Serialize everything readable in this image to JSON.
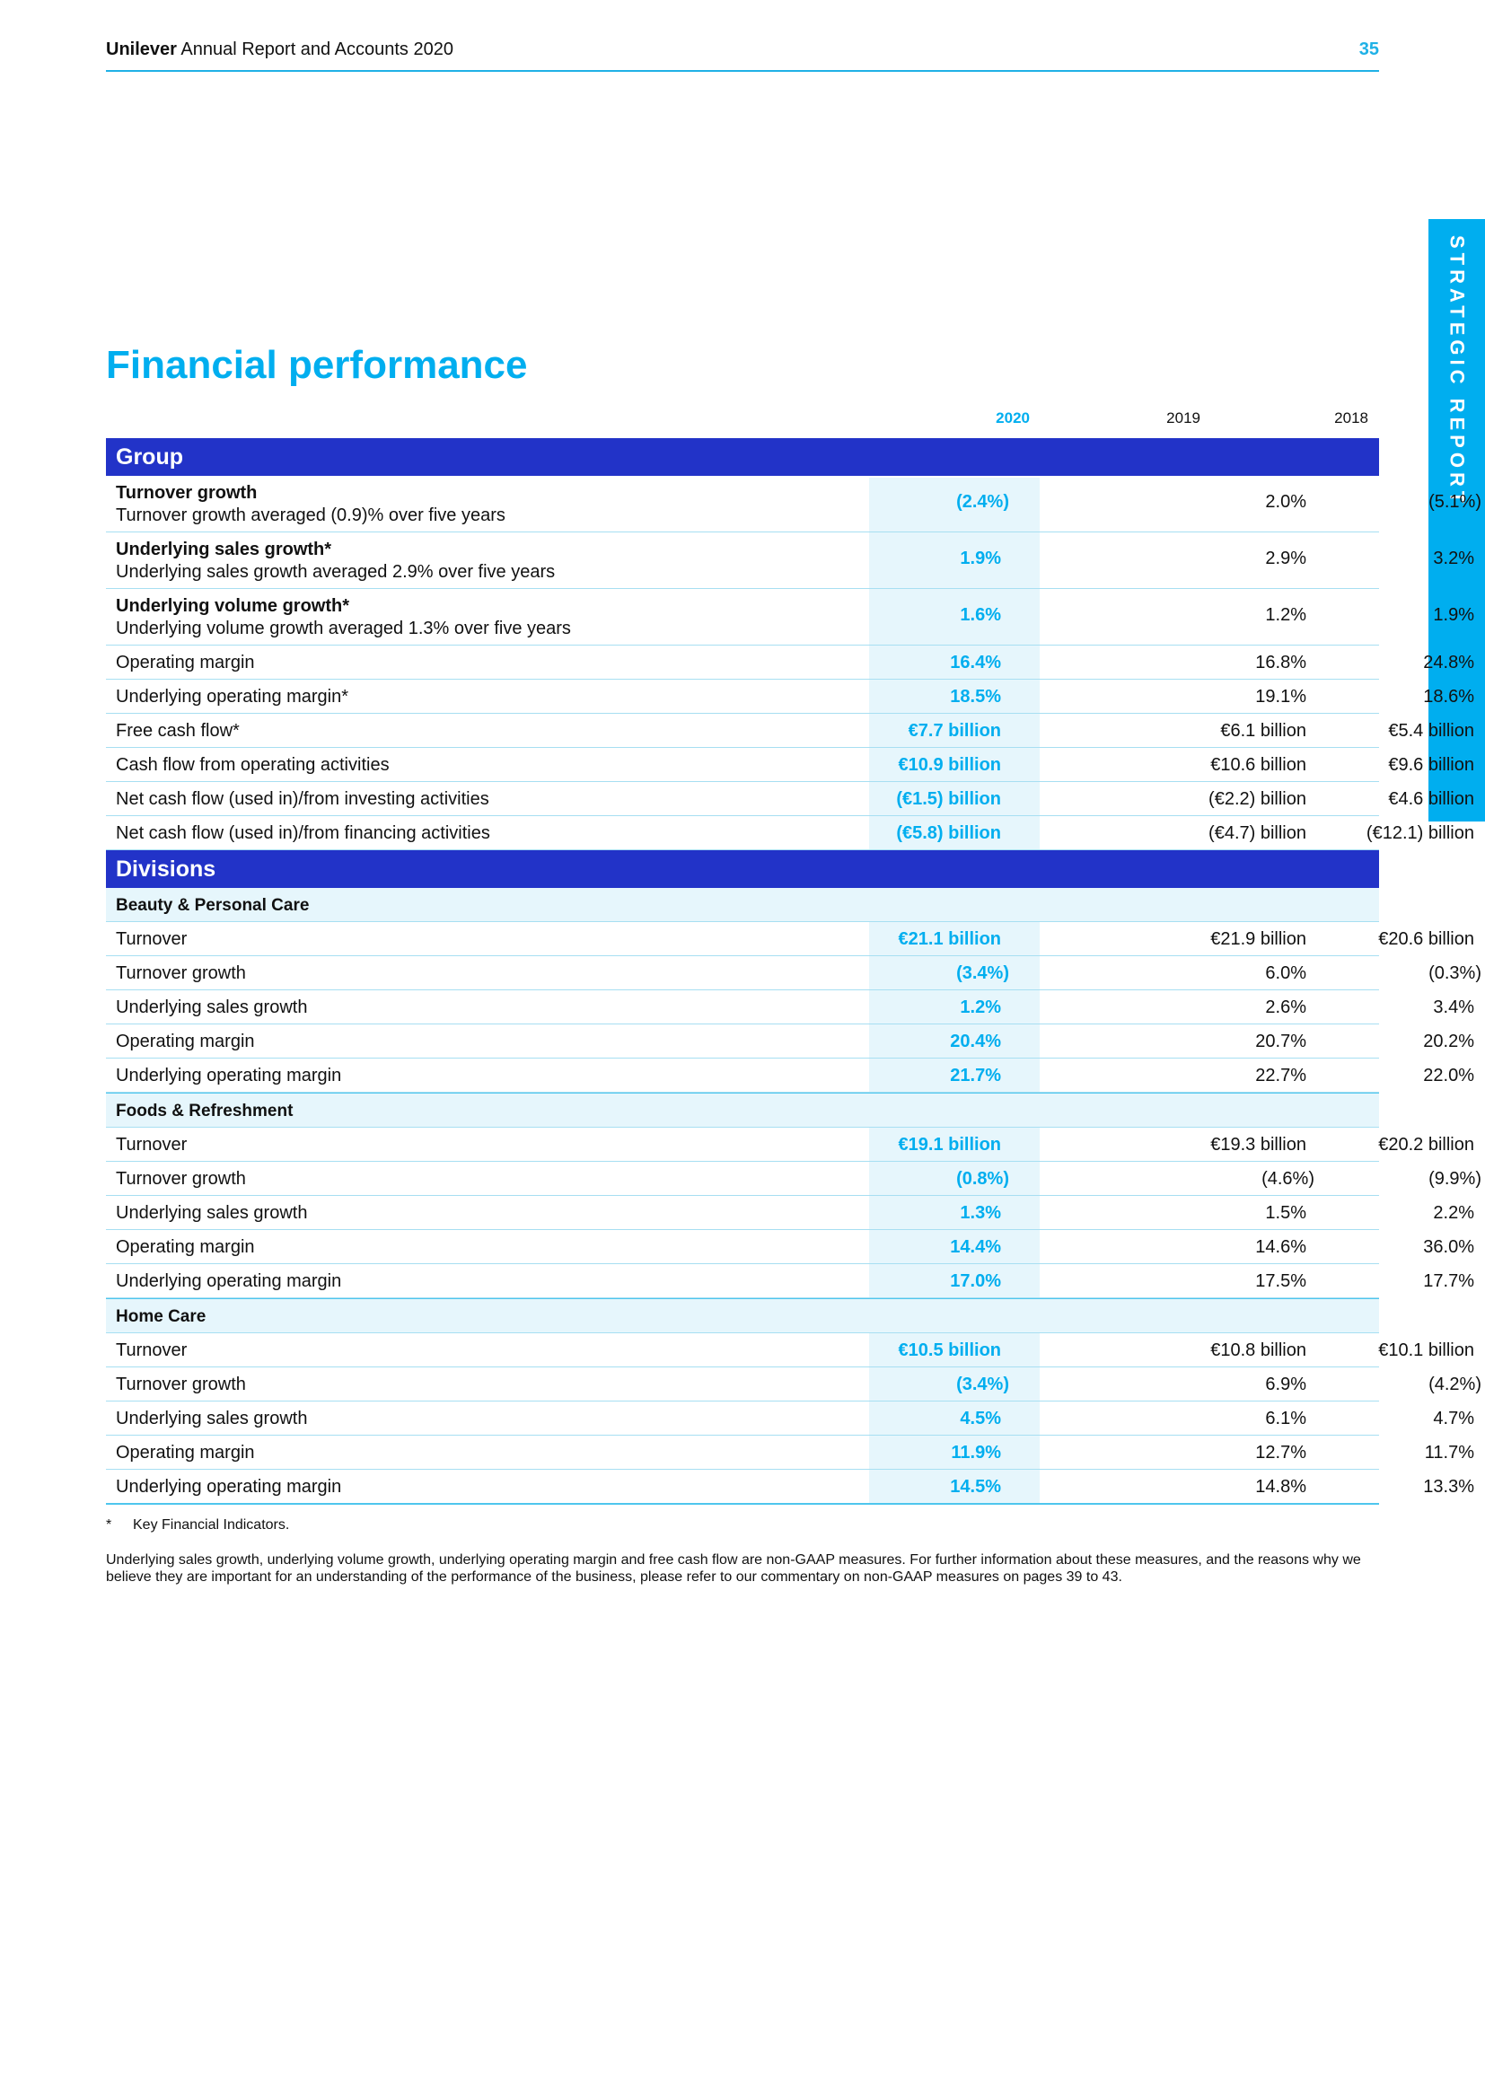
{
  "header": {
    "brand": "Unilever",
    "report": "Annual Report and Accounts 2020",
    "page_number": "35"
  },
  "side_tab": "STRATEGIC REPORT",
  "title": "Financial performance",
  "columns": [
    "2020",
    "2019",
    "2018"
  ],
  "group": {
    "heading": "Group",
    "rows": [
      {
        "title": "Turnover growth",
        "subtitle": "Turnover growth averaged (0.9)% over five years",
        "v2020": "(2.4%)",
        "v2019": "2.0%",
        "v2018": "(5.1%)"
      },
      {
        "title": "Underlying sales growth*",
        "subtitle": "Underlying sales growth averaged 2.9% over five years",
        "v2020": "1.9%",
        "v2019": "2.9%",
        "v2018": "3.2%"
      },
      {
        "title": "Underlying volume growth*",
        "subtitle": "Underlying volume growth averaged 1.3% over five years",
        "v2020": "1.6%",
        "v2019": "1.2%",
        "v2018": "1.9%"
      },
      {
        "label": "Operating margin",
        "v2020": "16.4%",
        "v2019": "16.8%",
        "v2018": "24.8%"
      },
      {
        "label": "Underlying operating margin*",
        "v2020": "18.5%",
        "v2019": "19.1%",
        "v2018": "18.6%"
      },
      {
        "label": "Free cash flow*",
        "v2020": "€7.7 billion",
        "v2019": "€6.1 billion",
        "v2018": "€5.4 billion"
      },
      {
        "label": "Cash flow from operating activities",
        "v2020": "€10.9 billion",
        "v2019": "€10.6 billion",
        "v2018": "€9.6 billion"
      },
      {
        "label": "Net cash flow (used in)/from investing activities",
        "v2020": "(€1.5) billion",
        "v2019": "(€2.2) billion",
        "v2018": "€4.6 billion"
      },
      {
        "label": "Net cash flow (used in)/from financing activities",
        "v2020": "(€5.8) billion",
        "v2019": "(€4.7) billion",
        "v2018": "(€12.1) billion"
      }
    ]
  },
  "divisions": {
    "heading": "Divisions",
    "sections": [
      {
        "name": "Beauty & Personal Care",
        "rows": [
          {
            "label": "Turnover",
            "v2020": "€21.1 billion",
            "v2019": "€21.9 billion",
            "v2018": "€20.6 billion"
          },
          {
            "label": "Turnover growth",
            "v2020": "(3.4%)",
            "v2019": "6.0%",
            "v2018": "(0.3%)"
          },
          {
            "label": "Underlying sales growth",
            "v2020": "1.2%",
            "v2019": "2.6%",
            "v2018": "3.4%"
          },
          {
            "label": "Operating margin",
            "v2020": "20.4%",
            "v2019": "20.7%",
            "v2018": "20.2%"
          },
          {
            "label": "Underlying operating margin",
            "v2020": "21.7%",
            "v2019": "22.7%",
            "v2018": "22.0%"
          }
        ]
      },
      {
        "name": "Foods & Refreshment",
        "rows": [
          {
            "label": "Turnover",
            "v2020": "€19.1 billion",
            "v2019": "€19.3 billion",
            "v2018": "€20.2 billion"
          },
          {
            "label": "Turnover growth",
            "v2020": "(0.8%)",
            "v2019": "(4.6%)",
            "v2018": "(9.9%)"
          },
          {
            "label": "Underlying sales growth",
            "v2020": "1.3%",
            "v2019": "1.5%",
            "v2018": "2.2%"
          },
          {
            "label": "Operating margin",
            "v2020": "14.4%",
            "v2019": "14.6%",
            "v2018": "36.0%"
          },
          {
            "label": "Underlying operating margin",
            "v2020": "17.0%",
            "v2019": "17.5%",
            "v2018": "17.7%"
          }
        ]
      },
      {
        "name": "Home Care",
        "rows": [
          {
            "label": "Turnover",
            "v2020": "€10.5 billion",
            "v2019": "€10.8 billion",
            "v2018": "€10.1 billion"
          },
          {
            "label": "Turnover growth",
            "v2020": "(3.4%)",
            "v2019": "6.9%",
            "v2018": "(4.2%)"
          },
          {
            "label": "Underlying sales growth",
            "v2020": "4.5%",
            "v2019": "6.1%",
            "v2018": "4.7%"
          },
          {
            "label": "Operating margin",
            "v2020": "11.9%",
            "v2019": "12.7%",
            "v2018": "11.7%"
          },
          {
            "label": "Underlying operating margin",
            "v2020": "14.5%",
            "v2019": "14.8%",
            "v2018": "13.3%"
          }
        ]
      }
    ]
  },
  "footnote": {
    "marker": "*",
    "text": "Key Financial Indicators."
  },
  "notes": "Underlying sales growth, underlying volume growth, underlying operating margin and free cash flow are non-GAAP measures. For further information about these measures, and the reasons why we believe they are important for an understanding of the performance of the business, please refer to our commentary on non-GAAP measures on pages 39 to 43."
}
